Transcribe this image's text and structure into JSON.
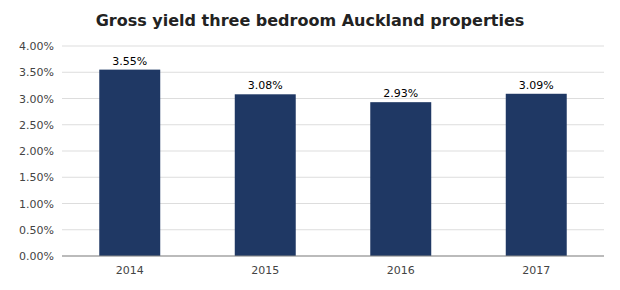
{
  "chart_data": {
    "type": "bar",
    "title": "Gross yield three bedroom Auckland properties",
    "categories": [
      "2014",
      "2015",
      "2016",
      "2017"
    ],
    "values": [
      0.0355,
      0.0308,
      0.0293,
      0.0309
    ],
    "value_labels": [
      "3.55%",
      "3.08%",
      "2.93%",
      "3.09%"
    ],
    "data_labels": true,
    "color": "#1F3864",
    "ylim": [
      0.0,
      0.04
    ],
    "yticks": [
      {
        "value": 0.0,
        "label": "0.00%"
      },
      {
        "value": 0.005,
        "label": "0.50%"
      },
      {
        "value": 0.01,
        "label": "1.00%"
      },
      {
        "value": 0.015,
        "label": "1.50%"
      },
      {
        "value": 0.02,
        "label": "2.00%"
      },
      {
        "value": 0.025,
        "label": "2.50%"
      },
      {
        "value": 0.03,
        "label": "3.00%"
      },
      {
        "value": 0.035,
        "label": "3.50%"
      },
      {
        "value": 0.04,
        "label": "4.00%"
      }
    ],
    "grid": true
  }
}
